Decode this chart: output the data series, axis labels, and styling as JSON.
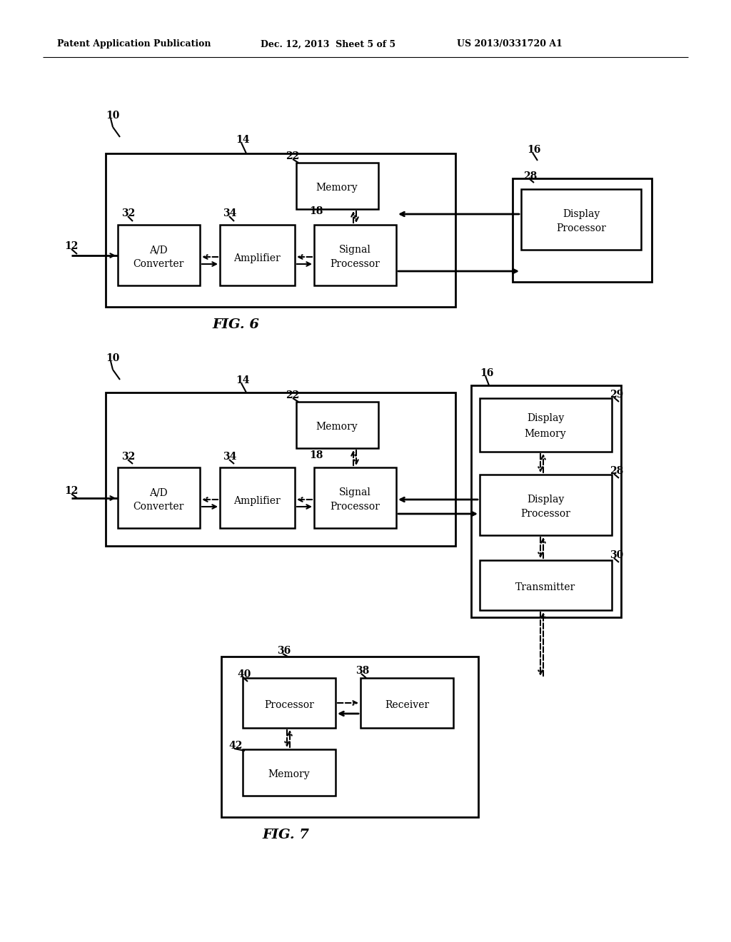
{
  "bg_color": "#ffffff",
  "header_left": "Patent Application Publication",
  "header_mid": "Dec. 12, 2013  Sheet 5 of 5",
  "header_right": "US 2013/0331720 A1",
  "fig6_label": "FIG. 6",
  "fig7_label": "FIG. 7",
  "lc": "#000000"
}
